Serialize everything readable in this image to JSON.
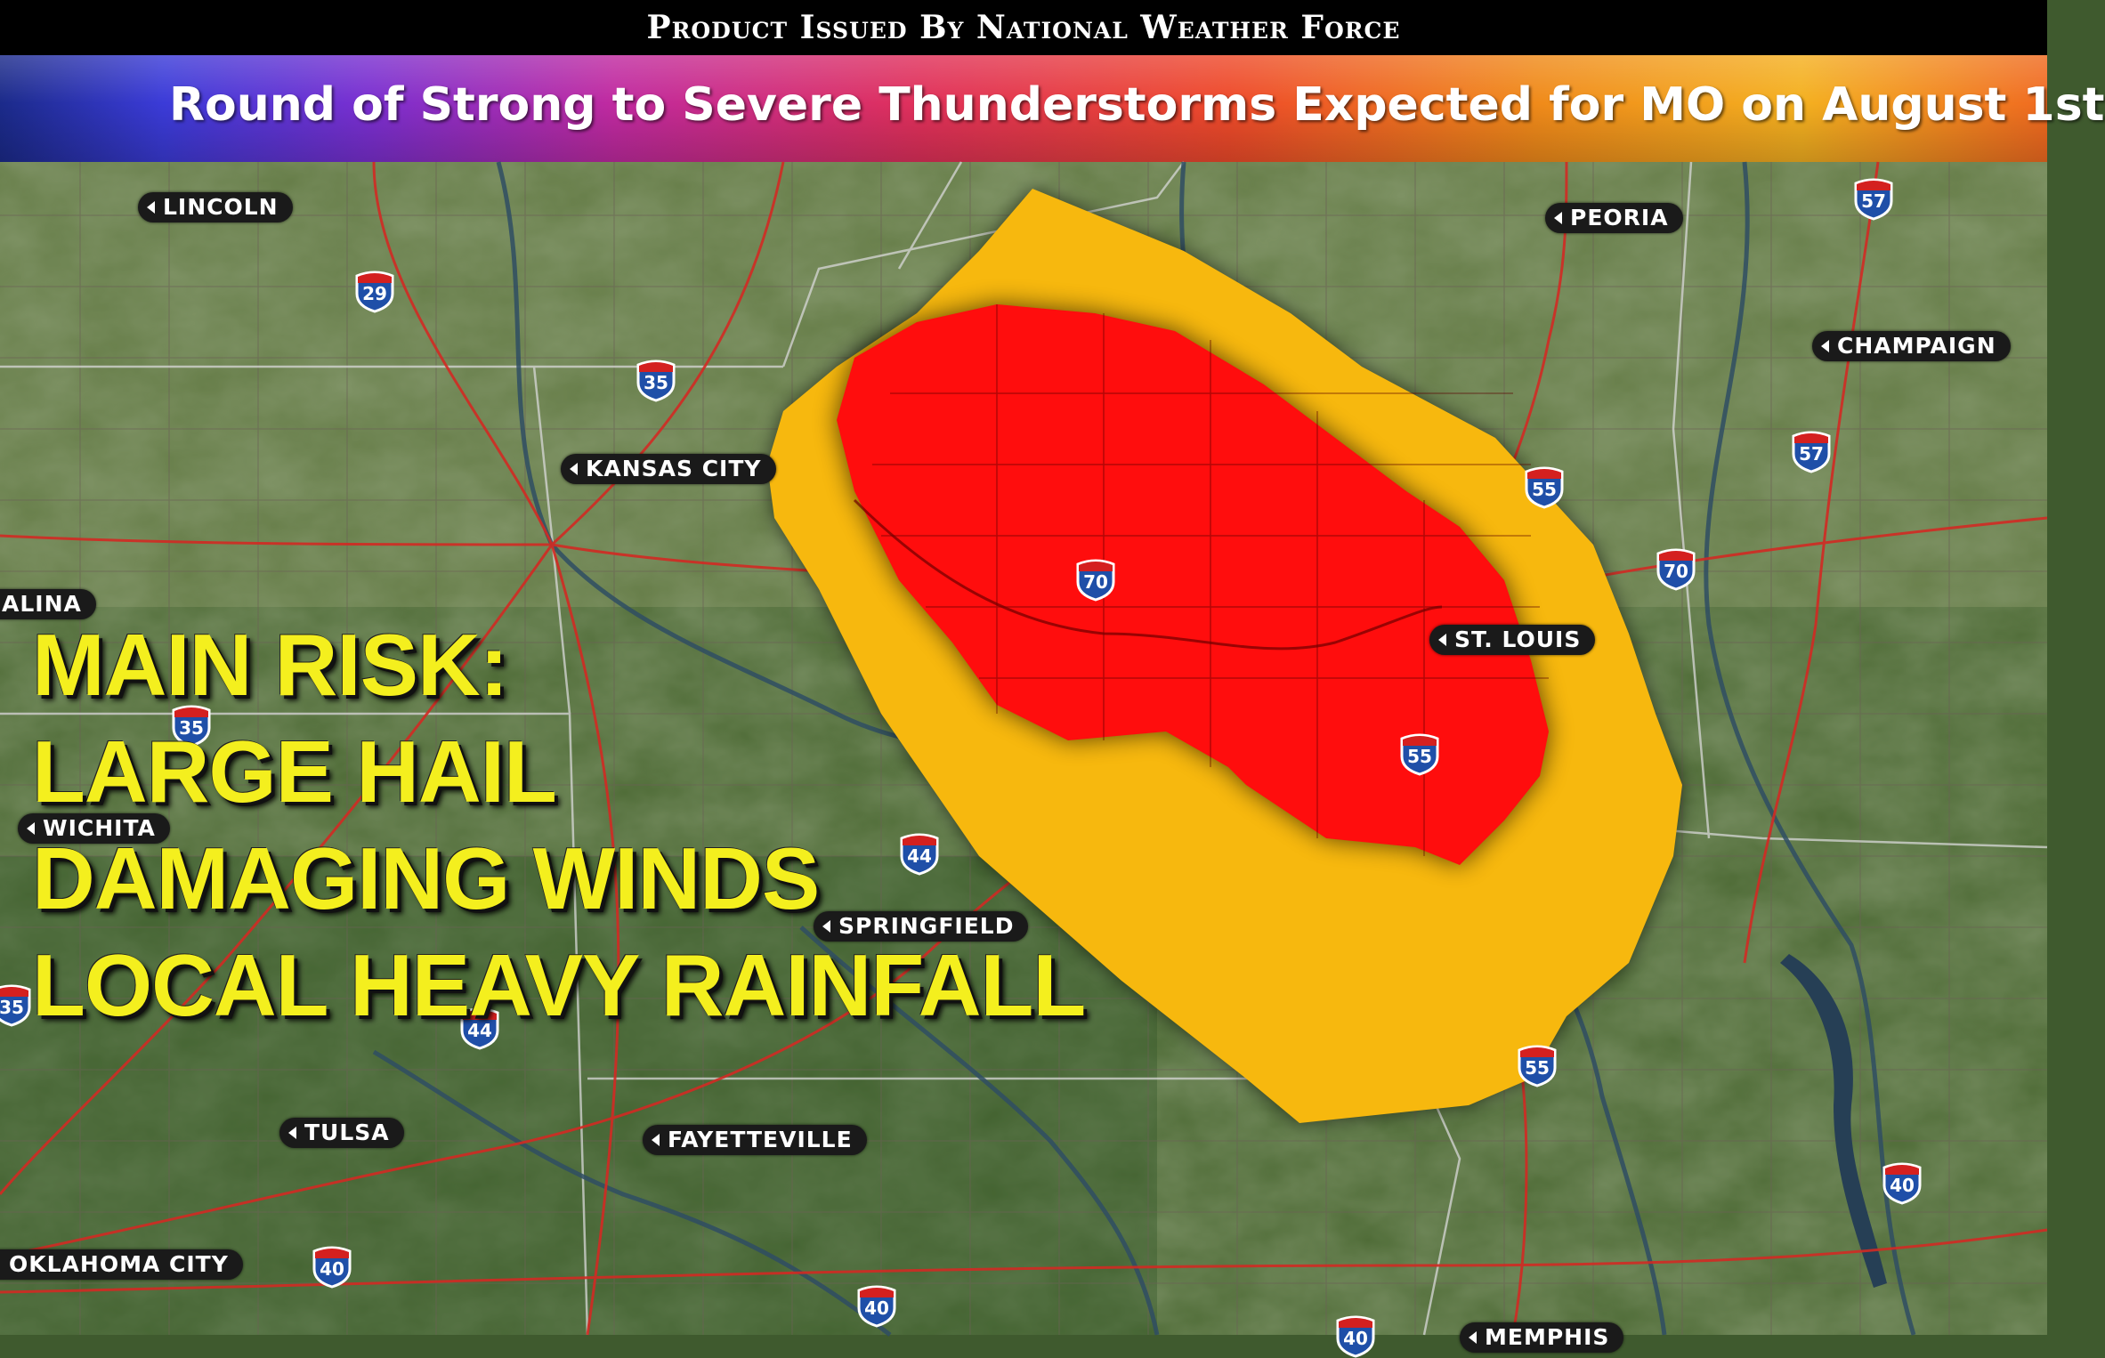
{
  "header": {
    "issued_by": "Product Issued By National Weather Force",
    "title": "Round of Strong to Severe Thunderstorms Expected for MO on August 1st"
  },
  "risk": {
    "heading": "MAIN RISK:",
    "items": [
      "LARGE HAIL",
      "DAMAGING WINDS",
      "LOCAL HEAVY RAINFALL"
    ]
  },
  "cities": [
    {
      "id": "lincoln",
      "label": "LINCOLN"
    },
    {
      "id": "peoria",
      "label": "PEORIA"
    },
    {
      "id": "champaign",
      "label": "CHAMPAIGN"
    },
    {
      "id": "kansas-city",
      "label": "KANSAS CITY"
    },
    {
      "id": "salina",
      "label": "ALINA"
    },
    {
      "id": "st-louis",
      "label": "ST. LOUIS"
    },
    {
      "id": "wichita",
      "label": "WICHITA"
    },
    {
      "id": "springfield",
      "label": "SPRINGFIELD"
    },
    {
      "id": "tulsa",
      "label": "TULSA"
    },
    {
      "id": "fayetteville",
      "label": "FAYETTEVILLE"
    },
    {
      "id": "oklahoma-city",
      "label": "OKLAHOMA CITY"
    },
    {
      "id": "memphis",
      "label": "MEMPHIS"
    }
  ],
  "interstates": [
    "29",
    "35",
    "57",
    "57",
    "55",
    "70",
    "70",
    "35",
    "55",
    "44",
    "35",
    "44",
    "55",
    "40",
    "40",
    "40",
    "40"
  ],
  "colors": {
    "outer_risk": "#f7b80e",
    "inner_risk": "#ff0d0d",
    "risk_text": "#f4ef1e",
    "interstate_shield": "#1f4fa8",
    "interstate_top": "#d4201f"
  }
}
